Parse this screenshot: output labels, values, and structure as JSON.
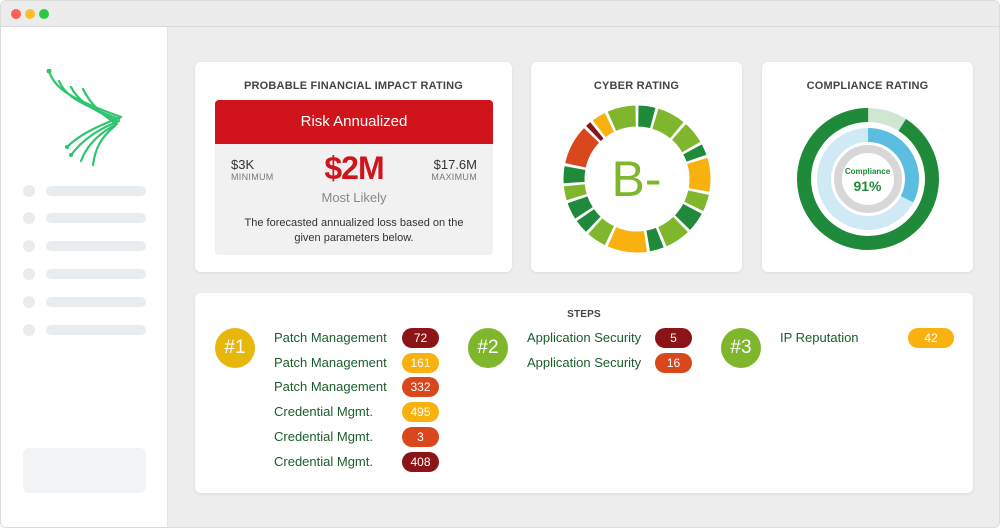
{
  "colors": {
    "red": "#d0141c",
    "dark_red": "#8b1416",
    "orange": "#d9481c",
    "amber": "#f9b10f",
    "lime": "#7fb62b",
    "green": "#1f8a3a",
    "light_blue": "#5bbde0",
    "pale_blue": "#cfe9f5"
  },
  "financial": {
    "title": "PROBABLE FINANCIAL IMPACT RATING",
    "header": "Risk Annualized",
    "min_value": "$3K",
    "min_label": "MINIMUM",
    "likely_value": "$2M",
    "likely_label": "Most Likely",
    "max_value": "$17.6M",
    "max_label": "MAXIMUM",
    "description": "The forecasted annualized loss based on the given parameters below."
  },
  "cyber": {
    "title": "CYBER RATING",
    "grade": "B-"
  },
  "compliance": {
    "title": "COMPLIANCE RATING",
    "label": "Compliance",
    "value": "91%",
    "percent": 91
  },
  "steps": {
    "title": "STEPS",
    "groups": [
      {
        "badge": "#1",
        "color": "#e8b70c",
        "items": [
          {
            "label": "Patch Management",
            "value": "72",
            "color": "#8b1416",
            "text_color": "#ffffff"
          },
          {
            "label": "Patch Management",
            "value": "161",
            "color": "#f9b10f",
            "text_color": "#ffffff"
          },
          {
            "label": "Patch Management",
            "value": "332",
            "color": "#d9481c",
            "text_color": "#ffffff"
          },
          {
            "label": "Credential Mgmt.",
            "value": "495",
            "color": "#f9b10f",
            "text_color": "#ffffff"
          },
          {
            "label": "Credential Mgmt.",
            "value": "3",
            "color": "#d9481c",
            "text_color": "#ffffff"
          },
          {
            "label": "Credential Mgmt.",
            "value": "408",
            "color": "#8b1416",
            "text_color": "#ffffff"
          }
        ]
      },
      {
        "badge": "#2",
        "color": "#7fb62b",
        "items": [
          {
            "label": "Application Security",
            "value": "5",
            "color": "#8b1416",
            "text_color": "#ffffff"
          },
          {
            "label": "Application Security",
            "value": "16",
            "color": "#d9481c",
            "text_color": "#ffffff"
          }
        ]
      },
      {
        "badge": "#3",
        "color": "#7fb62b",
        "items": [
          {
            "label": "IP Reputation",
            "value": "42",
            "color": "#f9b10f",
            "text_color": "#ffffff"
          }
        ]
      }
    ]
  },
  "sidebar": {
    "logo": "brand-logo-icon",
    "items": [
      {
        "name": "nav-item-1"
      },
      {
        "name": "nav-item-2"
      },
      {
        "name": "nav-item-3"
      },
      {
        "name": "nav-item-4"
      },
      {
        "name": "nav-item-5"
      },
      {
        "name": "nav-item-6"
      }
    ]
  }
}
